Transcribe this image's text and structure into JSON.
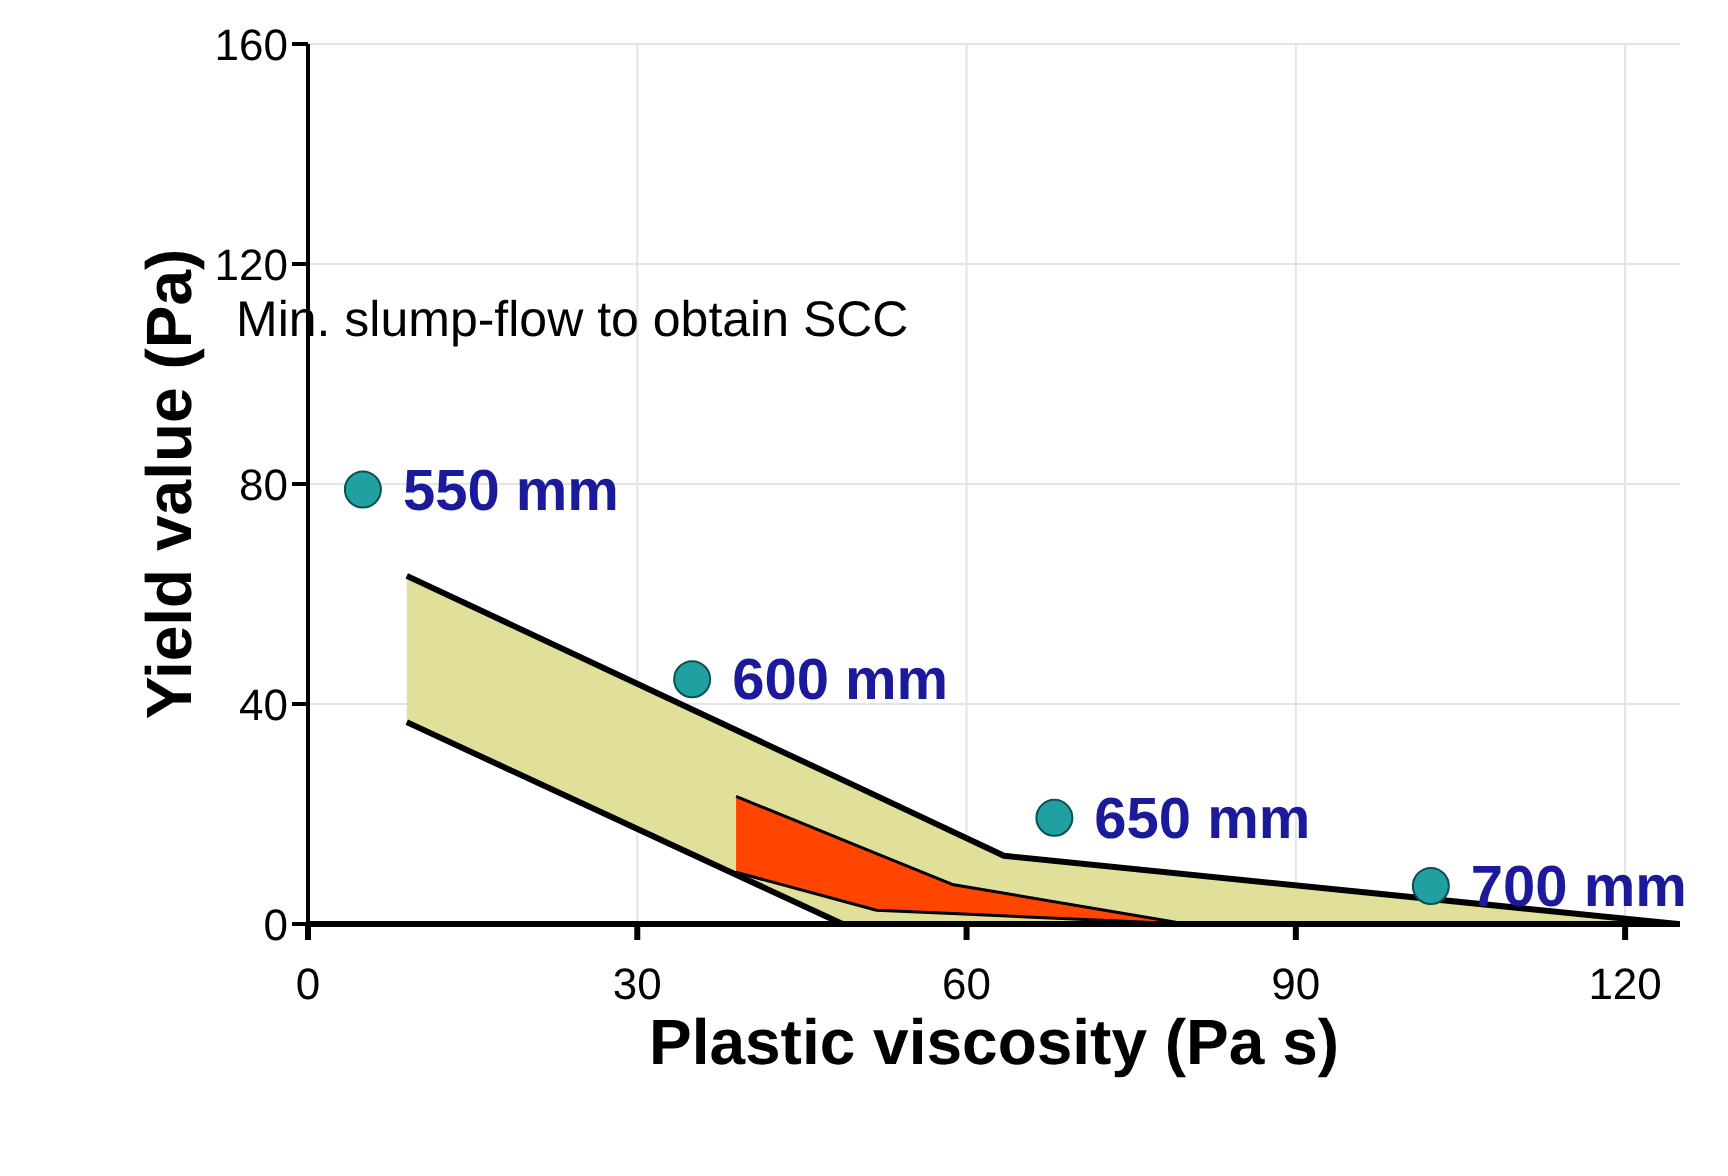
{
  "chart_data": {
    "type": "line",
    "xlabel": "Plastic viscosity (Pa s)",
    "ylabel": "Yield value (Pa)",
    "xlim": [
      0,
      125
    ],
    "xticks": [
      0,
      30,
      60,
      90,
      120
    ],
    "ylim": [
      0,
      160
    ],
    "yticks": [
      0,
      40,
      80,
      120,
      160
    ],
    "grid": true,
    "annotations": [
      "Min. slump-flow to obtain SCC",
      {
        "text": "550 mm",
        "x": 5,
        "y": 79
      },
      {
        "text": "600 mm",
        "x": 35,
        "y": 44.5
      },
      {
        "text": "650 mm",
        "x": 68,
        "y": 19.3
      },
      {
        "text": "700 mm",
        "x": 102.3,
        "y": 6.9
      }
    ],
    "series": [
      {
        "color": "#000000",
        "x": [
          9,
          48.7,
          63.4,
          124.8
        ],
        "values": [
          63.3,
          26.2,
          12.4,
          0
        ],
        "lower": [
          36.7,
          0,
          0,
          0
        ],
        "upper": [
          63.3,
          26.2,
          12.4,
          0
        ]
      },
      {
        "color": "#000000",
        "x": [
          39,
          51.8,
          58.7,
          80
        ],
        "values": [
          23.2,
          12.8,
          7.2,
          0
        ],
        "lower": [
          9.4,
          2.5,
          1.9,
          0
        ],
        "upper": [
          23.2,
          12.8,
          7.2,
          0
        ]
      },
      {
        "type": "scatter",
        "color": "#20a0a0",
        "marker": "circle",
        "x": [
          5,
          35,
          68,
          102.3
        ],
        "values": [
          79,
          44.5,
          19.3,
          6.9
        ]
      }
    ]
  }
}
